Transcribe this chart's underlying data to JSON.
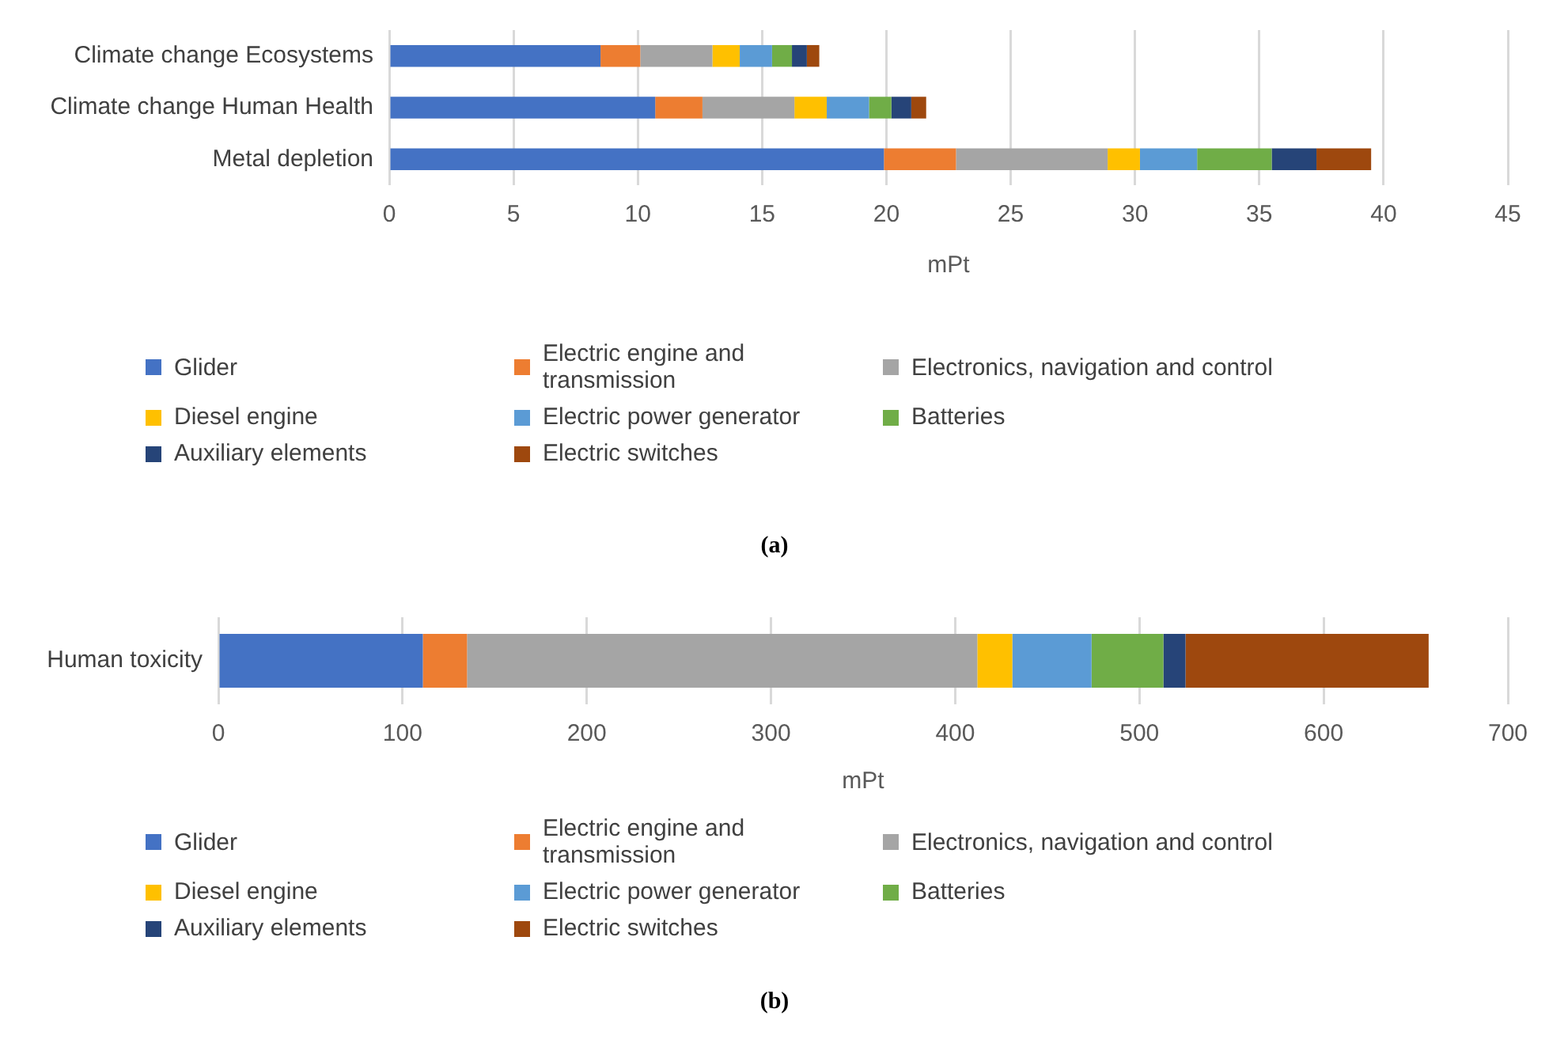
{
  "chart_data": [
    {
      "type": "bar",
      "orientation": "horizontal",
      "stacked": true,
      "xlabel": "mPt",
      "categories": [
        "Climate change Ecosystems",
        "Climate change Human Health",
        "Metal depletion"
      ],
      "xlim": [
        0,
        45
      ],
      "xticks": [
        0,
        5,
        10,
        15,
        20,
        25,
        30,
        35,
        40,
        45
      ],
      "grid": "x",
      "legend": "bottom",
      "annotations": [
        "(a)"
      ],
      "series": [
        {
          "name": "Glider",
          "color": "#4472c4",
          "values": [
            8.5,
            10.7,
            19.9
          ]
        },
        {
          "name": "Electric engine and transmission",
          "color": "#ed7d31",
          "values": [
            1.6,
            1.9,
            2.9
          ]
        },
        {
          "name": "Electronics, navigation and control",
          "color": "#a5a5a5",
          "values": [
            2.9,
            3.7,
            6.1
          ]
        },
        {
          "name": "Diesel engine",
          "color": "#ffc000",
          "values": [
            1.1,
            1.3,
            1.3
          ]
        },
        {
          "name": "Electric power generator",
          "color": "#5b9bd5",
          "values": [
            1.3,
            1.7,
            2.3
          ]
        },
        {
          "name": "Batteries",
          "color": "#70ad47",
          "values": [
            0.8,
            0.9,
            3.0
          ]
        },
        {
          "name": "Auxiliary elements",
          "color": "#264478",
          "values": [
            0.6,
            0.8,
            1.8
          ]
        },
        {
          "name": "Electric switches",
          "color": "#9e480e",
          "values": [
            0.5,
            0.6,
            2.2
          ]
        }
      ]
    },
    {
      "type": "bar",
      "orientation": "horizontal",
      "stacked": true,
      "xlabel": "mPt",
      "categories": [
        "Human toxicity"
      ],
      "xlim": [
        0,
        700
      ],
      "xticks": [
        0,
        100,
        200,
        300,
        400,
        500,
        600,
        700
      ],
      "grid": "x",
      "legend": "bottom",
      "annotations": [
        "(b)"
      ],
      "series": [
        {
          "name": "Glider",
          "color": "#4472c4",
          "values": [
            111
          ]
        },
        {
          "name": "Electric engine and transmission",
          "color": "#ed7d31",
          "values": [
            24
          ]
        },
        {
          "name": "Electronics, navigation and control",
          "color": "#a5a5a5",
          "values": [
            277
          ]
        },
        {
          "name": "Diesel engine",
          "color": "#ffc000",
          "values": [
            19
          ]
        },
        {
          "name": "Electric power generator",
          "color": "#5b9bd5",
          "values": [
            43
          ]
        },
        {
          "name": "Batteries",
          "color": "#70ad47",
          "values": [
            39
          ]
        },
        {
          "name": "Auxiliary elements",
          "color": "#264478",
          "values": [
            12
          ]
        },
        {
          "name": "Electric switches",
          "color": "#9e480e",
          "values": [
            132
          ]
        }
      ]
    }
  ]
}
